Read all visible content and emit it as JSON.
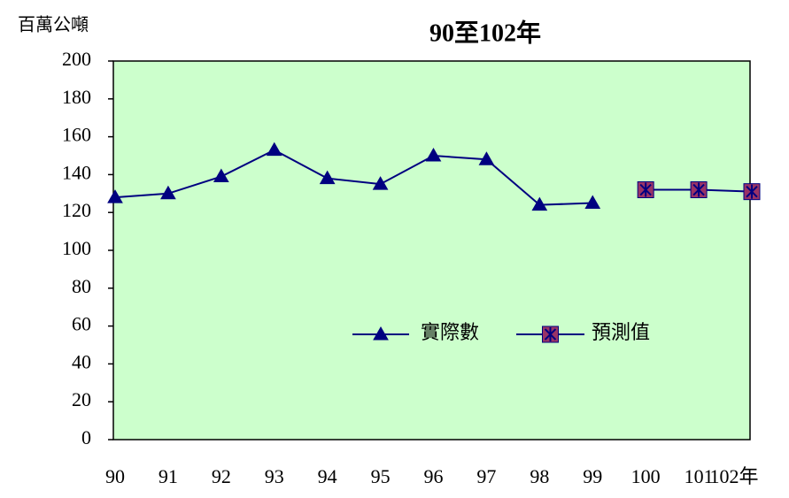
{
  "chart_data": {
    "type": "line",
    "title": "90至102年",
    "y_label": "百萬公噸",
    "categories": [
      "90",
      "91",
      "92",
      "93",
      "94",
      "95",
      "96",
      "97",
      "98",
      "99",
      "100",
      "101",
      "102年"
    ],
    "series": [
      {
        "name": "實際數",
        "color": "#000080",
        "marker": "triangle",
        "values": [
          128,
          130,
          139,
          153,
          138,
          135,
          150,
          148,
          124,
          125,
          null,
          null,
          null
        ]
      },
      {
        "name": "預測值",
        "color": "#993366",
        "line_color": "#000080",
        "marker": "square-star",
        "values": [
          null,
          null,
          null,
          null,
          null,
          null,
          null,
          null,
          null,
          null,
          132,
          132,
          131
        ]
      }
    ],
    "ylim": [
      0,
      200
    ],
    "yticks": [
      0,
      20,
      40,
      60,
      80,
      100,
      120,
      140,
      160,
      180,
      200
    ],
    "plot_background": "#ccffcc",
    "grid": false,
    "legend_position": "lower center"
  }
}
